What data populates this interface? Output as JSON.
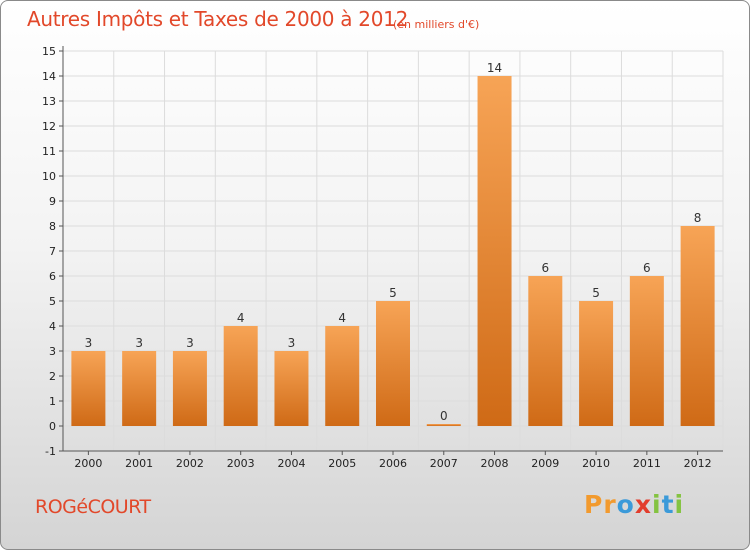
{
  "chart_data": {
    "type": "bar",
    "title": "Autres Impôts et Taxes de 2000 à 2012",
    "subtitle": "(en milliers d'€)",
    "categories": [
      "2000",
      "2001",
      "2002",
      "2003",
      "2004",
      "2005",
      "2006",
      "2007",
      "2008",
      "2009",
      "2010",
      "2011",
      "2012"
    ],
    "values": [
      3,
      3,
      3,
      4,
      3,
      4,
      5,
      0,
      14,
      6,
      5,
      6,
      8
    ],
    "value_labels": [
      "3",
      "3",
      "3",
      "4",
      "3",
      "4",
      "5",
      "0",
      "14",
      "6",
      "5",
      "6",
      "8"
    ],
    "yticks": [
      "15",
      "14",
      "13",
      "12",
      "11",
      "10",
      "9",
      "8",
      "7",
      "6",
      "5",
      "4",
      "3",
      "2",
      "1",
      "0",
      "-1"
    ],
    "ylim": [
      -1,
      15
    ],
    "bar_color_top": "#f7a456",
    "bar_color_bottom": "#cf6a16",
    "grid": true
  },
  "location": "ROGéCOURT",
  "brand": {
    "letters": [
      "P",
      "r",
      "o",
      "x",
      "i",
      "t",
      "i"
    ],
    "colors": [
      "#f29a2e",
      "#f29a2e",
      "#3b9ad9",
      "#e23d2d",
      "#84c341",
      "#3b9ad9",
      "#84c341"
    ]
  }
}
